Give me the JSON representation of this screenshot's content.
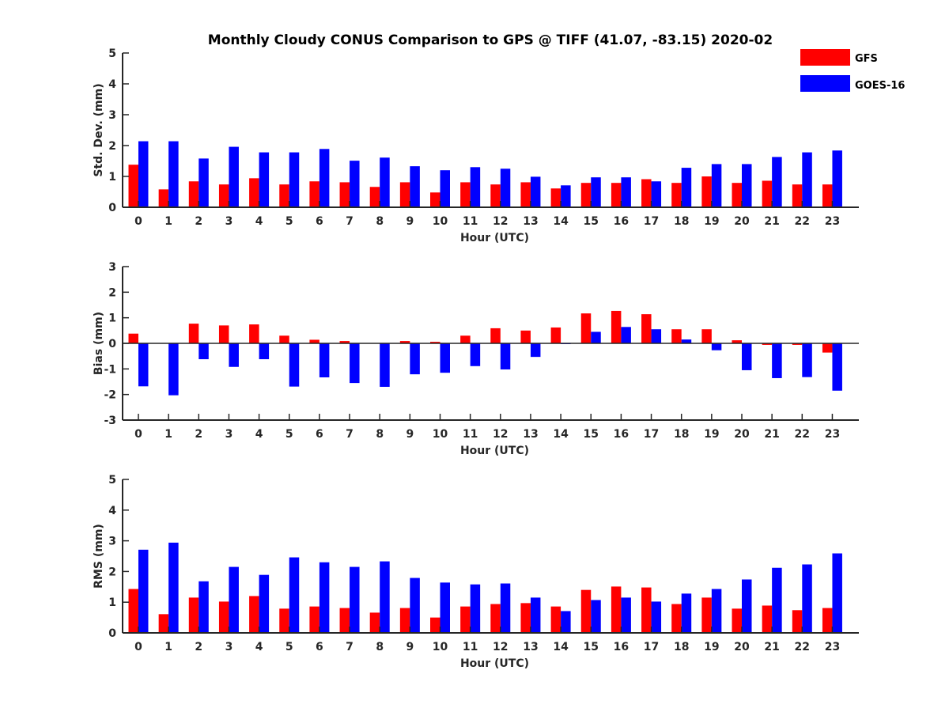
{
  "chart_data": {
    "title": "Monthly Cloudy CONUS Comparison to GPS @ TIFF (41.07, -83.15) 2020-02",
    "legend": {
      "placement": "top-right",
      "entries": [
        {
          "name": "GFS",
          "color": "#ff0000"
        },
        {
          "name": "GOES-16",
          "color": "#0000ff"
        }
      ]
    },
    "panels": [
      {
        "type": "bar",
        "ylabel": "Std. Dev. (mm)",
        "xlabel": "Hour (UTC)",
        "ylim": [
          0,
          5
        ],
        "yticks": [
          0,
          1,
          2,
          3,
          4,
          5
        ],
        "categories": [
          "0",
          "1",
          "2",
          "3",
          "4",
          "5",
          "6",
          "7",
          "8",
          "9",
          "10",
          "11",
          "12",
          "13",
          "14",
          "15",
          "16",
          "17",
          "18",
          "19",
          "20",
          "21",
          "22",
          "23"
        ],
        "series": [
          {
            "name": "GFS",
            "color": "#ff0000",
            "values": [
              1.38,
              0.58,
              0.84,
              0.74,
              0.94,
              0.74,
              0.84,
              0.81,
              0.66,
              0.81,
              0.48,
              0.81,
              0.74,
              0.81,
              0.61,
              0.79,
              0.79,
              0.91,
              0.79,
              1.0,
              0.79,
              0.86,
              0.74,
              0.74
            ]
          },
          {
            "name": "GOES-16",
            "color": "#0000ff",
            "values": [
              2.14,
              2.14,
              1.58,
              1.96,
              1.78,
              1.78,
              1.89,
              1.51,
              1.61,
              1.33,
              1.2,
              1.3,
              1.25,
              0.99,
              0.71,
              0.97,
              0.97,
              0.84,
              1.28,
              1.4,
              1.4,
              1.63,
              1.78,
              1.84
            ]
          }
        ]
      },
      {
        "type": "bar",
        "ylabel": "Bias (mm)",
        "xlabel": "Hour (UTC)",
        "ylim": [
          -3,
          3
        ],
        "yticks": [
          -3,
          -2,
          -1,
          0,
          1,
          2,
          3
        ],
        "categories": [
          "0",
          "1",
          "2",
          "3",
          "4",
          "5",
          "6",
          "7",
          "8",
          "9",
          "10",
          "11",
          "12",
          "13",
          "14",
          "15",
          "16",
          "17",
          "18",
          "19",
          "20",
          "21",
          "22",
          "23"
        ],
        "series": [
          {
            "name": "GFS",
            "color": "#ff0000",
            "values": [
              0.38,
              0.0,
              0.77,
              0.7,
              0.74,
              0.3,
              0.14,
              0.09,
              0.0,
              0.09,
              0.06,
              0.3,
              0.59,
              0.5,
              0.62,
              1.17,
              1.27,
              1.14,
              0.55,
              0.55,
              0.12,
              -0.06,
              -0.06,
              -0.36
            ]
          },
          {
            "name": "GOES-16",
            "color": "#0000ff",
            "values": [
              -1.68,
              -2.03,
              -0.62,
              -0.92,
              -0.62,
              -1.69,
              -1.33,
              -1.55,
              -1.7,
              -1.21,
              -1.15,
              -0.89,
              -1.02,
              -0.53,
              -0.03,
              0.45,
              0.64,
              0.55,
              0.15,
              -0.27,
              -1.05,
              -1.36,
              -1.32,
              -1.85
            ]
          }
        ]
      },
      {
        "type": "bar",
        "ylabel": "RMS (mm)",
        "xlabel": "Hour (UTC)",
        "ylim": [
          0,
          5
        ],
        "yticks": [
          0,
          1,
          2,
          3,
          4,
          5
        ],
        "categories": [
          "0",
          "1",
          "2",
          "3",
          "4",
          "5",
          "6",
          "7",
          "8",
          "9",
          "10",
          "11",
          "12",
          "13",
          "14",
          "15",
          "16",
          "17",
          "18",
          "19",
          "20",
          "21",
          "22",
          "23"
        ],
        "series": [
          {
            "name": "GFS",
            "color": "#ff0000",
            "values": [
              1.43,
              0.61,
              1.15,
              1.02,
              1.2,
              0.79,
              0.86,
              0.81,
              0.66,
              0.81,
              0.5,
              0.86,
              0.94,
              0.97,
              0.86,
              1.4,
              1.51,
              1.48,
              0.94,
              1.15,
              0.79,
              0.89,
              0.74,
              0.81
            ]
          },
          {
            "name": "GOES-16",
            "color": "#0000ff",
            "values": [
              2.71,
              2.94,
              1.68,
              2.15,
              1.89,
              2.46,
              2.3,
              2.15,
              2.33,
              1.79,
              1.64,
              1.58,
              1.61,
              1.15,
              0.71,
              1.07,
              1.15,
              1.02,
              1.28,
              1.43,
              1.74,
              2.12,
              2.23,
              2.59
            ]
          }
        ]
      }
    ]
  }
}
